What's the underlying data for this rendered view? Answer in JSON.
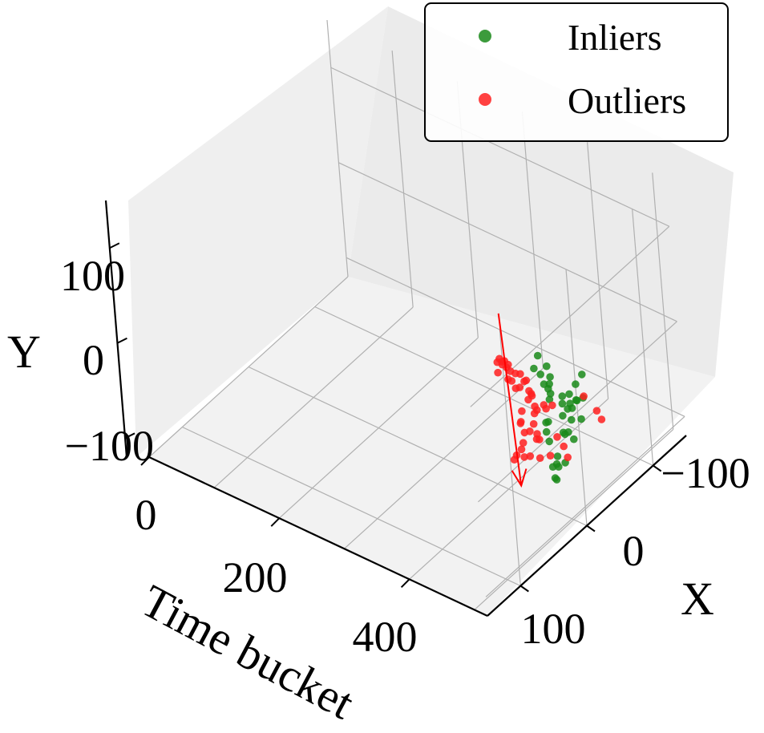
{
  "chart_data": {
    "type": "scatter",
    "dimensions": 3,
    "title": "",
    "xlabel": "Time bucket",
    "ylabel": "X",
    "zlabel": "Y",
    "axes": {
      "time": {
        "label": "Time bucket",
        "lim": [
          0,
          520
        ],
        "ticks": [
          0,
          200,
          400
        ],
        "tick_labels": [
          "0",
          "200",
          "400"
        ]
      },
      "x": {
        "label": "X",
        "lim": [
          -150,
          150
        ],
        "ticks": [
          -100,
          0,
          100
        ],
        "tick_labels": [
          "−100",
          "0",
          "100"
        ]
      },
      "y": {
        "label": "Y",
        "lim": [
          -120,
          150
        ],
        "ticks": [
          -100,
          0,
          100
        ],
        "tick_labels": [
          "−100",
          "0",
          "100"
        ]
      }
    },
    "grid": true,
    "legend": {
      "placement": "top-right",
      "entries": [
        {
          "label": "Inliers",
          "color": "#1a8a1a"
        },
        {
          "label": "Outliers",
          "color": "#ff2020"
        }
      ]
    },
    "series": [
      {
        "name": "Inliers",
        "color": "#1a8a1a",
        "points": [
          [
            460,
            -53,
            -24
          ],
          [
            460,
            -63,
            -20
          ],
          [
            460,
            -43,
            -28
          ],
          [
            460,
            -33,
            -24
          ],
          [
            460,
            -62,
            -44
          ],
          [
            460,
            -52,
            -40
          ],
          [
            460,
            -43,
            -38
          ],
          [
            450,
            -62,
            -50
          ],
          [
            450,
            -48,
            -50
          ],
          [
            450,
            -41,
            -40
          ],
          [
            450,
            -52,
            -64
          ],
          [
            450,
            -66,
            -72
          ],
          [
            440,
            -63,
            -62
          ],
          [
            440,
            -49,
            -61
          ],
          [
            440,
            -48,
            -78
          ],
          [
            440,
            -55,
            -82
          ],
          [
            440,
            -62,
            -94
          ],
          [
            430,
            -59,
            -90
          ],
          [
            430,
            -46,
            -105
          ],
          [
            430,
            -44,
            -112
          ],
          [
            430,
            -56,
            -118
          ],
          [
            420,
            -47,
            -120
          ],
          [
            420,
            -49,
            -133
          ],
          [
            420,
            -51,
            -136
          ],
          [
            420,
            -55,
            -125
          ],
          [
            400,
            -60,
            -88
          ],
          [
            395,
            -64,
            -102
          ],
          [
            385,
            -80,
            -70
          ],
          [
            380,
            -85,
            -86
          ],
          [
            370,
            -96,
            -90
          ],
          [
            360,
            -106,
            -82
          ],
          [
            350,
            -113,
            -97
          ],
          [
            340,
            -120,
            -86
          ],
          [
            330,
            -123,
            -110
          ],
          [
            320,
            -128,
            -106
          ],
          [
            310,
            -135,
            -94
          ],
          [
            300,
            -137,
            -112
          ],
          [
            390,
            -72,
            -98
          ],
          [
            405,
            -58,
            -105
          ]
        ]
      },
      {
        "name": "Outliers",
        "color": "#ff2020",
        "points": [
          [
            460,
            -18,
            -24
          ],
          [
            460,
            -6,
            -16
          ],
          [
            445,
            -22,
            -35
          ],
          [
            440,
            -1,
            -47
          ],
          [
            470,
            -25,
            -80
          ],
          [
            440,
            -47,
            -92
          ],
          [
            430,
            -36,
            -98
          ],
          [
            420,
            -30,
            -100
          ],
          [
            420,
            -8,
            -85
          ],
          [
            410,
            -40,
            -90
          ],
          [
            410,
            -25,
            -98
          ],
          [
            400,
            -45,
            -96
          ],
          [
            400,
            -15,
            -94
          ],
          [
            390,
            -55,
            -100
          ],
          [
            390,
            -20,
            -105
          ],
          [
            380,
            -60,
            -96
          ],
          [
            380,
            -40,
            -110
          ],
          [
            370,
            -75,
            -94
          ],
          [
            370,
            -55,
            -105
          ],
          [
            360,
            -80,
            -104
          ],
          [
            360,
            -60,
            -100
          ],
          [
            350,
            -90,
            -106
          ],
          [
            350,
            -68,
            -110
          ],
          [
            340,
            -96,
            -102
          ],
          [
            340,
            -80,
            -108
          ],
          [
            330,
            -104,
            -108
          ],
          [
            320,
            -110,
            -112
          ],
          [
            310,
            -116,
            -108
          ],
          [
            300,
            -122,
            -116
          ],
          [
            290,
            -126,
            -114
          ],
          [
            280,
            -128,
            -118
          ],
          [
            270,
            -130,
            -120
          ],
          [
            265,
            -132,
            -116
          ],
          [
            260,
            -134,
            -122
          ],
          [
            255,
            -136,
            -118
          ],
          [
            250,
            -137,
            -124
          ],
          [
            245,
            -138,
            -120
          ],
          [
            240,
            -139,
            -126
          ],
          [
            260,
            -128,
            -112
          ],
          [
            250,
            -130,
            -128
          ],
          [
            270,
            -126,
            -126
          ],
          [
            280,
            -122,
            -122
          ],
          [
            290,
            -118,
            -124
          ],
          [
            300,
            -115,
            -118
          ],
          [
            320,
            -108,
            -120
          ],
          [
            420,
            -115,
            -104
          ],
          [
            430,
            -112,
            -108
          ],
          [
            500,
            -28,
            -8
          ],
          [
            425,
            -52,
            -90
          ],
          [
            395,
            -30,
            -92
          ]
        ]
      }
    ],
    "annotations": [
      {
        "type": "arrow",
        "color": "#ff0000",
        "from": [
          230,
          -155,
          -88
        ],
        "to": [
          500,
          70,
          -40
        ]
      }
    ]
  }
}
